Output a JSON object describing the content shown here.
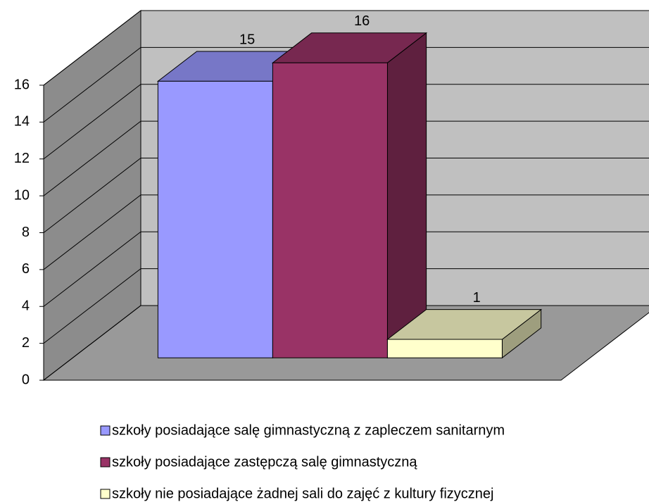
{
  "chart_data": {
    "type": "bar",
    "categories": [
      null
    ],
    "series": [
      {
        "name": "szkoły posiadające salę gimnastyczną z zapleczem sanitarnym",
        "color": "#9999ff",
        "values": [
          15
        ]
      },
      {
        "name": "szkoły posiadające zastępczą salę gimnastyczną",
        "color": "#993366",
        "values": [
          16
        ]
      },
      {
        "name": "szkoły nie posiadające żadnej sali do zajęć z kultury fizycznej",
        "color": "#ffffcc",
        "values": [
          1
        ]
      }
    ],
    "ylim": [
      0,
      16
    ],
    "yticks": [
      0,
      2,
      4,
      6,
      8,
      10,
      12,
      14,
      16
    ],
    "grid": true,
    "legend": "bottom"
  }
}
